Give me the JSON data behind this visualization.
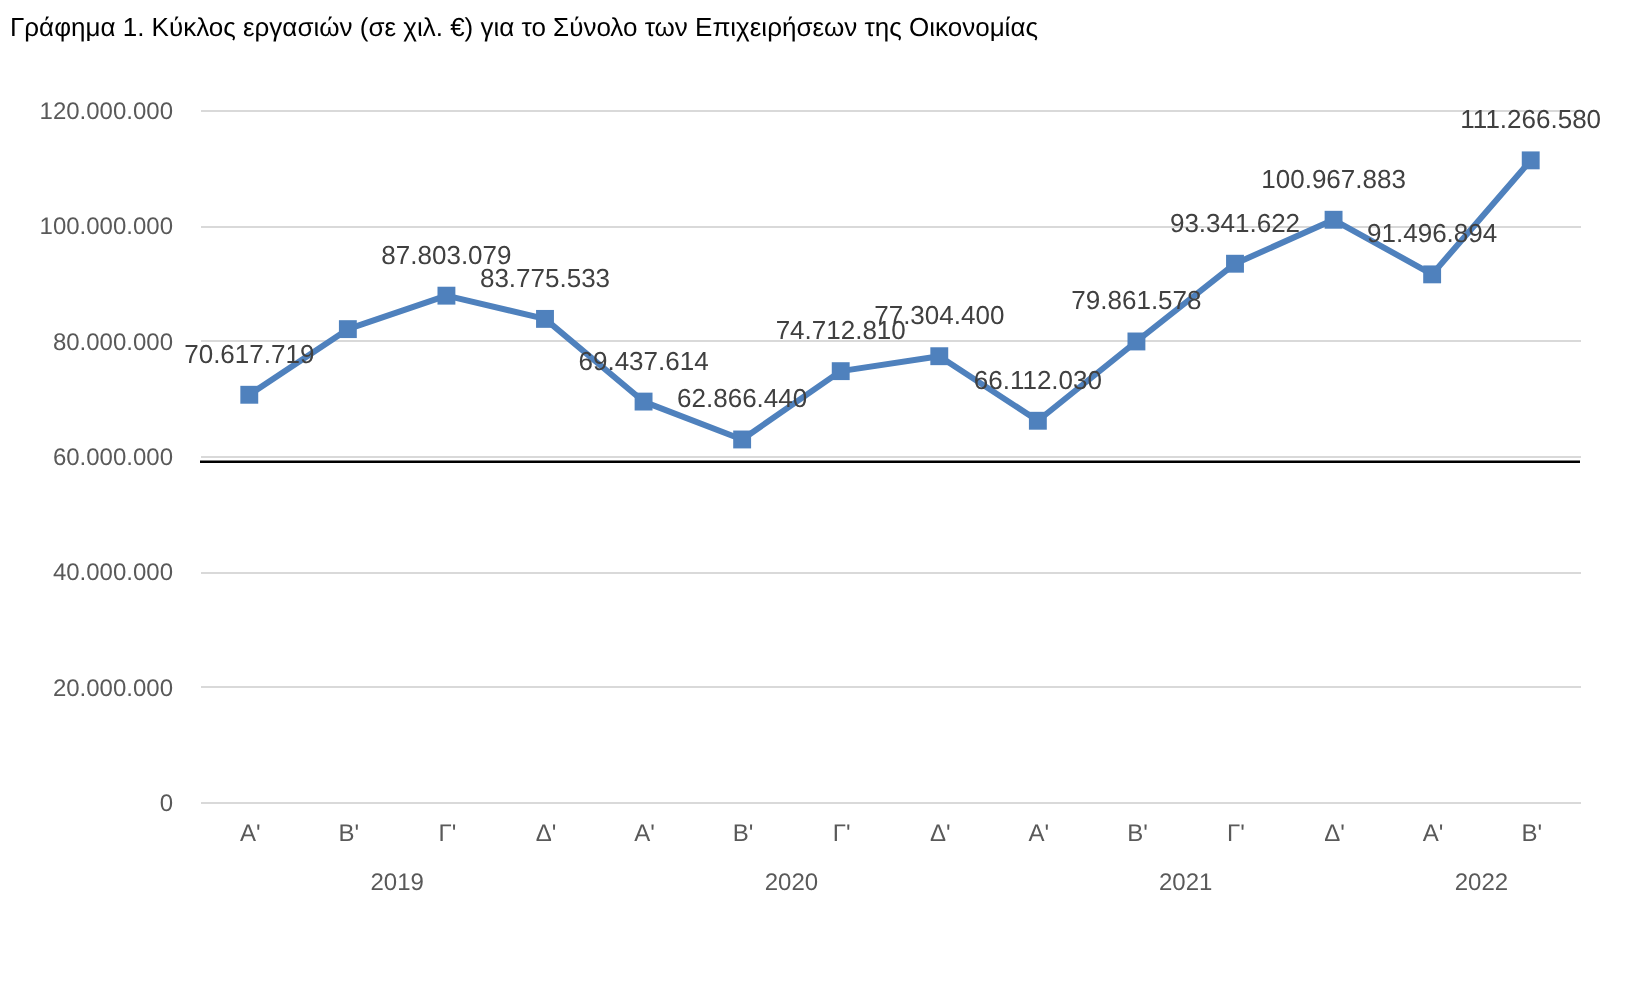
{
  "chart_data": {
    "type": "line",
    "title": "Γράφημα 1. Κύκλος εργασιών (σε χιλ. €) για το Σύνολο των Επιχειρήσεων της Οικονομίας",
    "categories": [
      "Α'",
      "Β'",
      "Γ'",
      "Δ'",
      "Α'",
      "Β'",
      "Γ'",
      "Δ'",
      "Α'",
      "Β'",
      "Γ'",
      "Δ'",
      "Α'",
      "Β'"
    ],
    "annotations": [
      "2019",
      "2020",
      "2021",
      "2022"
    ],
    "series": [
      {
        "color": "#4f81bd",
        "values": [
          70617719,
          82000000,
          87803079,
          83775533,
          69437614,
          62866440,
          74712810,
          77304400,
          66112030,
          79861578,
          93341622,
          100967883,
          91496894,
          111266580
        ],
        "value_labels": [
          "70.617.719",
          null,
          "87.803.079",
          "83.775.533",
          "69.437.614",
          "62.866.440",
          "74.712.810",
          "77.304.400",
          "66.112.030",
          "79.861.578",
          "93.341.622",
          "100.967.883",
          "91.496.894",
          "111.266.580"
        ]
      }
    ],
    "ylim": [
      0,
      120000000
    ],
    "yticks": [
      0,
      {
        "value": 20000000,
        "label": "20.000.000"
      },
      {
        "value": 40000000,
        "label": "40.000.000"
      },
      {
        "value": 60000000,
        "label": "60.000.000"
      },
      {
        "value": 80000000,
        "label": "80.000.000"
      },
      {
        "value": 100000000,
        "label": "100.000.000"
      },
      {
        "value": 120000000,
        "label": "120.000.000"
      }
    ],
    "ref_lines": [
      {
        "axis": "y",
        "value": 59000000,
        "color": "#000000"
      }
    ],
    "grid": "y",
    "marker": "square",
    "line_style": "solid"
  }
}
